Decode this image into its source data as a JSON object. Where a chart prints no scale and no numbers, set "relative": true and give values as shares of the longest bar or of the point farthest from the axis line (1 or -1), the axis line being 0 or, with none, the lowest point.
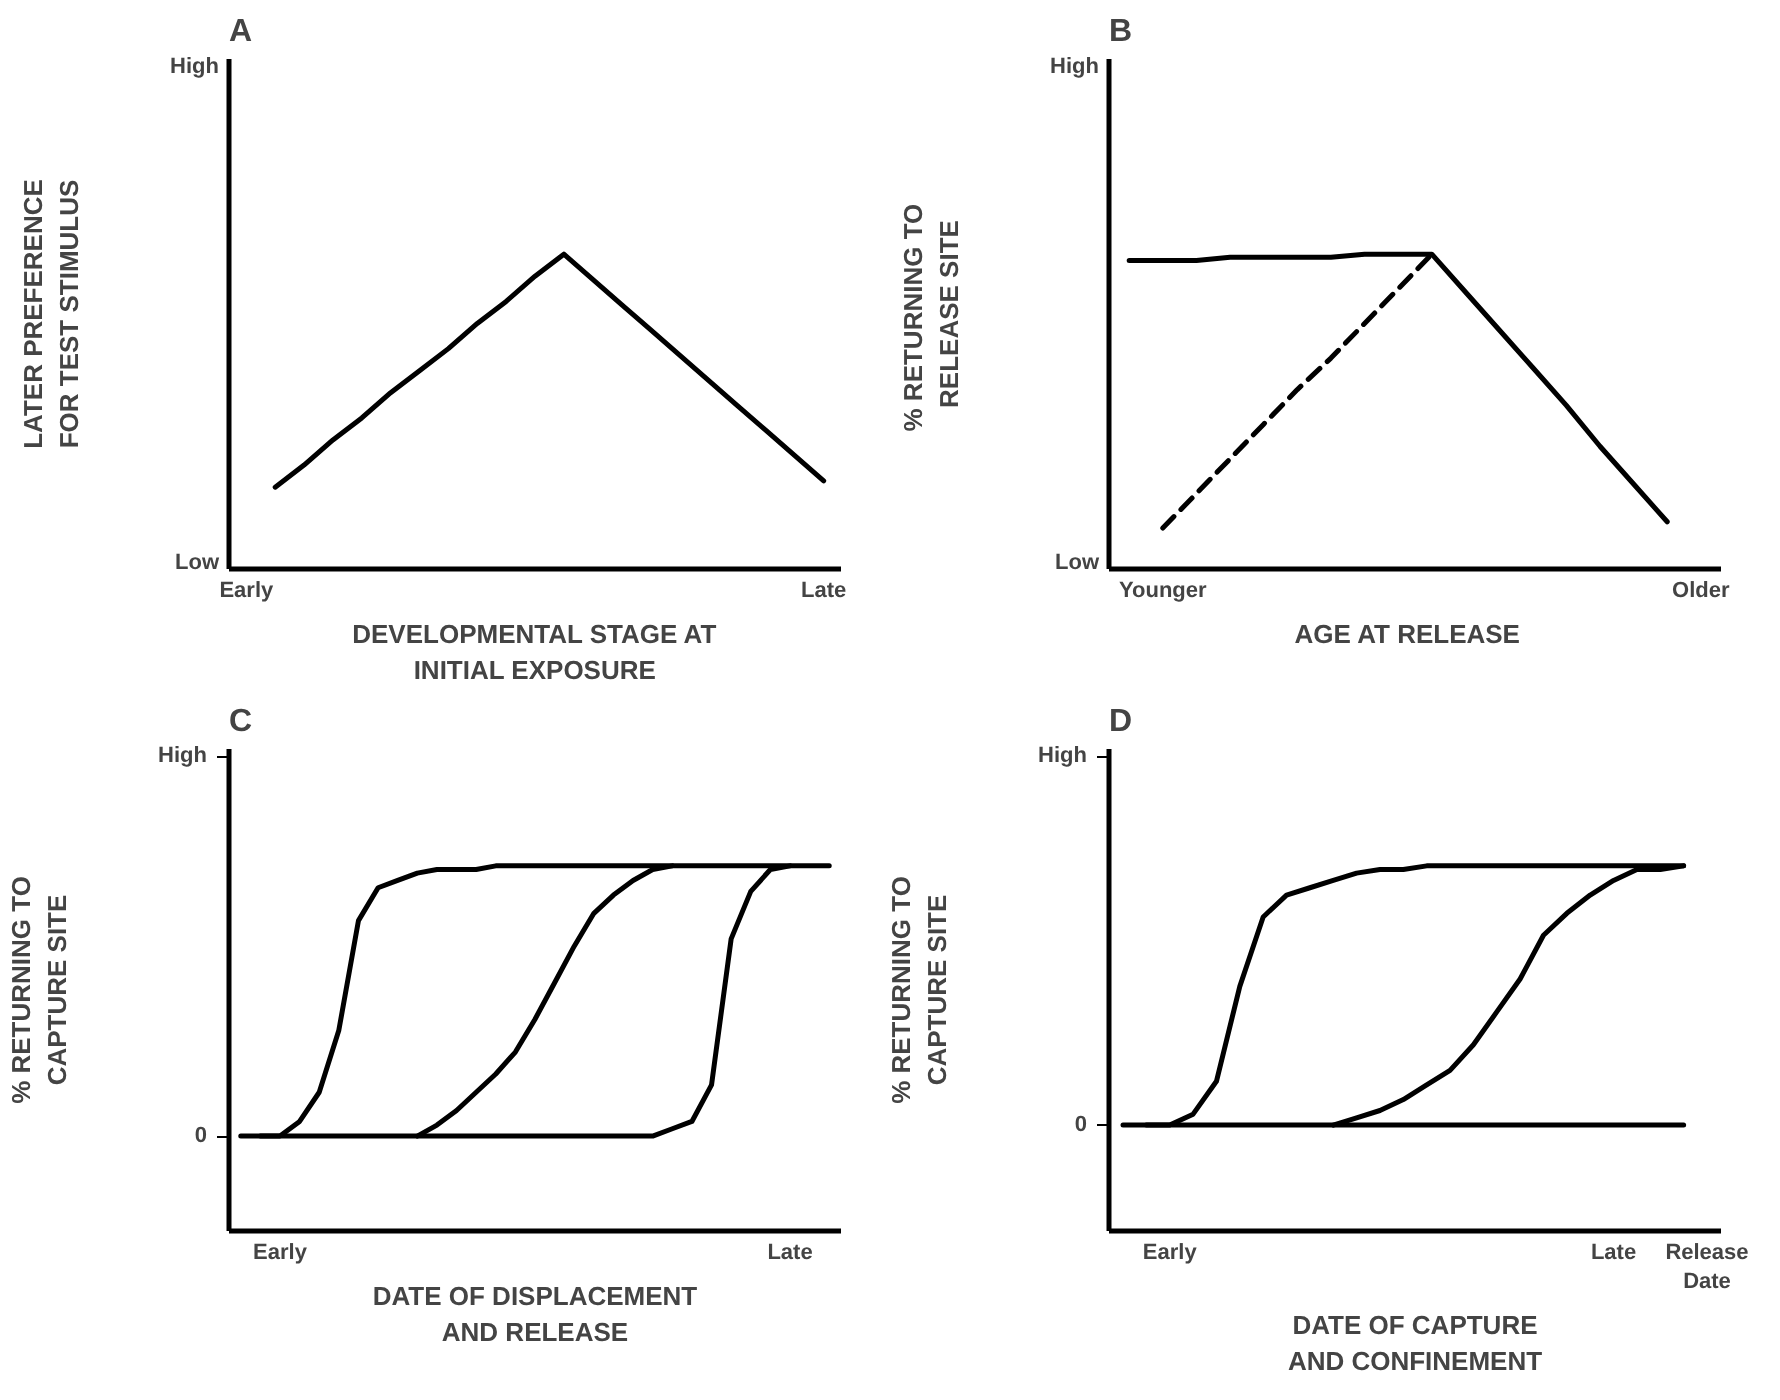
{
  "chart_data": [
    {
      "type": "line",
      "relative": true,
      "title": "A",
      "xlabel": "DEVELOPMENTAL STAGE AT\nINITIAL EXPOSURE",
      "ylabel": "LATER PREFERENCE\nFOR TEST STIMULUS",
      "categories": [
        "Early",
        null,
        null,
        null,
        null,
        null,
        null,
        null,
        null,
        null,
        null,
        null,
        null,
        null,
        null,
        null,
        null,
        null,
        null,
        null,
        "Late"
      ],
      "annotations": [
        "High",
        "Low"
      ],
      "series": [
        {
          "color": "#000000",
          "values": [
            null,
            0.26,
            0.33,
            0.41,
            0.48,
            0.56,
            0.63,
            0.7,
            0.78,
            0.85,
            0.93,
            1.0,
            0.92,
            0.84,
            0.76,
            0.68,
            0.6,
            0.52,
            0.44,
            0.36,
            0.28
          ]
        }
      ]
    },
    {
      "type": "line",
      "relative": true,
      "title": "B",
      "xlabel": "AGE  AT  RELEASE",
      "ylabel": "%  RETURNING TO\nRELEASE SITE",
      "categories": [
        null,
        "Younger",
        null,
        null,
        null,
        null,
        null,
        null,
        null,
        null,
        null,
        null,
        null,
        null,
        null,
        null,
        null,
        "Older"
      ],
      "annotations": [
        "High",
        "Low"
      ],
      "series": [
        {
          "color": "#000000",
          "values": [
            0.98,
            0.98,
            0.98,
            0.99,
            0.99,
            0.99,
            0.99,
            1.0,
            1.0,
            1.0,
            0.88,
            0.76,
            0.64,
            0.52,
            0.39,
            0.27,
            0.15,
            null
          ]
        },
        {
          "color": "#000000",
          "line_style": "dashed",
          "values": [
            null,
            0.13,
            0.24,
            0.35,
            0.46,
            0.57,
            0.67,
            0.78,
            0.89,
            1.0,
            null,
            null,
            null,
            null,
            null,
            null,
            null,
            null
          ]
        }
      ]
    },
    {
      "type": "line",
      "relative": true,
      "title": "C",
      "xlabel": "DATE OF DISPLACEMENT\nAND RELEASE",
      "ylabel": "% RETURNING TO\nCAPTURE SITE",
      "categories": [
        null,
        null,
        "Early",
        null,
        null,
        null,
        null,
        null,
        null,
        null,
        null,
        null,
        null,
        null,
        null,
        null,
        null,
        null,
        null,
        null,
        null,
        null,
        null,
        null,
        null,
        null,
        null,
        null,
        "Late",
        null,
        null
      ],
      "annotations": [
        "High",
        "0"
      ],
      "series": [
        {
          "color": "#000000",
          "values": [
            null,
            0.26,
            0.26,
            0.3,
            0.38,
            0.55,
            0.85,
            0.94,
            0.96,
            0.98,
            0.99,
            0.99,
            0.99,
            1,
            1,
            1,
            1,
            1,
            1,
            1,
            1,
            1,
            1,
            1,
            1,
            1,
            1,
            1,
            1,
            1,
            1
          ]
        },
        {
          "color": "#000000",
          "values": [
            null,
            null,
            null,
            null,
            null,
            null,
            null,
            null,
            null,
            0.26,
            0.29,
            0.33,
            0.38,
            0.43,
            0.49,
            0.58,
            0.68,
            0.78,
            0.87,
            0.92,
            0.96,
            0.99,
            1,
            null,
            null,
            null,
            null,
            null,
            null,
            null,
            null
          ]
        },
        {
          "color": "#000000",
          "values": [
            0.26,
            0.26,
            0.26,
            0.26,
            0.26,
            0.26,
            0.26,
            0.26,
            0.26,
            0.26,
            0.26,
            0.26,
            0.26,
            0.26,
            0.26,
            0.26,
            0.26,
            0.26,
            0.26,
            0.26,
            0.26,
            0.26,
            0.28,
            0.3,
            0.4,
            0.8,
            0.93,
            0.99,
            1,
            null,
            null
          ]
        }
      ]
    },
    {
      "type": "line",
      "relative": true,
      "title": "D",
      "xlabel": "DATE OF CAPTURE\nAND CONFINEMENT",
      "ylabel": "% RETURNING TO\nCAPTURE SITE",
      "categories": [
        null,
        null,
        "Early",
        null,
        null,
        null,
        null,
        null,
        null,
        null,
        null,
        null,
        null,
        null,
        null,
        null,
        null,
        null,
        null,
        null,
        null,
        "Late",
        null,
        null,
        null,
        "Release\nDate"
      ],
      "annotations": [
        "High",
        "0"
      ],
      "series": [
        {
          "color": "#000000",
          "values": [
            null,
            0.29,
            0.29,
            0.32,
            0.41,
            0.67,
            0.86,
            0.92,
            0.94,
            0.96,
            0.98,
            0.99,
            0.99,
            1,
            1,
            1,
            1,
            1,
            1,
            1,
            1,
            1,
            1,
            1,
            1,
            null
          ]
        },
        {
          "color": "#000000",
          "values": [
            null,
            null,
            null,
            null,
            null,
            null,
            null,
            null,
            null,
            0.29,
            0.31,
            0.33,
            0.36,
            0.4,
            0.44,
            0.51,
            0.6,
            0.69,
            0.81,
            0.87,
            0.92,
            0.96,
            0.99,
            0.99,
            1,
            null
          ]
        },
        {
          "color": "#000000",
          "values": [
            0.29,
            0.29,
            0.29,
            0.29,
            0.29,
            0.29,
            0.29,
            0.29,
            0.29,
            0.29,
            0.29,
            0.29,
            0.29,
            0.29,
            0.29,
            0.29,
            0.29,
            0.29,
            0.29,
            0.29,
            0.29,
            0.29,
            0.29,
            0.29,
            0.29,
            null
          ]
        }
      ]
    }
  ]
}
